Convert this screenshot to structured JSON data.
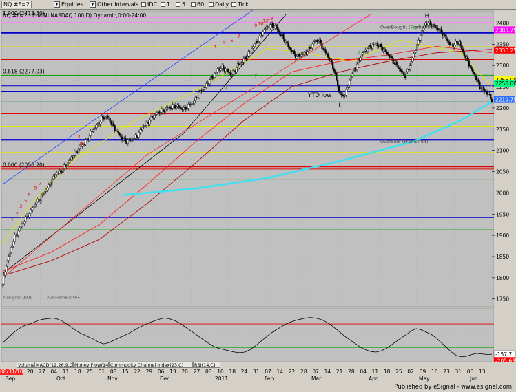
{
  "toolbar": {
    "symbol": "NQ #F=2",
    "equities": "Equities",
    "other_intervals": "Other Intervals",
    "buttons": [
      "IDC",
      "1",
      "5",
      "60",
      "Daily",
      "Tick"
    ]
  },
  "chart_data": [
    {
      "type": "candlestick",
      "title": "NQ #F=2 - E-MINI NASDAQ 100,D) Dynamic,0:00-24:00",
      "ylim": [
        1735,
        2425
      ],
      "price_labels": [
        "2400",
        "2350",
        "2300",
        "2250",
        "2200",
        "2150",
        "2100",
        "2050",
        "2000",
        "1950",
        "1900",
        "1850",
        "1800",
        "1750"
      ],
      "price_values": [
        2400,
        2350,
        2300,
        2250,
        2200,
        2150,
        2100,
        2050,
        2000,
        1950,
        1900,
        1850,
        1800,
        1750
      ],
      "value_tags": [
        {
          "text": "2383.75",
          "value": 2383.75,
          "color": "#ff00ff"
        },
        {
          "text": "2336.25",
          "value": 2336.25,
          "color": "#ff0000"
        },
        {
          "text": "2266.00",
          "value": 2266,
          "color": "#ffff00"
        },
        {
          "text": "2258.00",
          "value": 2258,
          "color": "#00ff80"
        },
        {
          "text": "2219.75",
          "value": 2219.75,
          "color": "#3070ff"
        }
      ],
      "fib_labels": [
        {
          "text": "1.000 (2413.50)",
          "value": 2413.5
        },
        {
          "text": "0.618 (2277.03)",
          "value": 2277.03
        },
        {
          "text": "0.000 (2056.20)",
          "value": 2056.2
        }
      ],
      "annotations": [
        "YTD low",
        "L",
        "H",
        "OverBought (Frame: 84)",
        "OverSold (Frame: 84)",
        "©eSignal, 2020",
        "AutoFrame is OFF"
      ],
      "horizontal_levels": [
        {
          "value": 2413,
          "color": "#ff80ff",
          "style": "solid"
        },
        {
          "value": 2402,
          "color": "#ff80ff",
          "style": "solid"
        },
        {
          "value": 2377,
          "color": "#0000cc",
          "style": "thick"
        },
        {
          "value": 2344,
          "color": "#e6e600",
          "style": "solid"
        },
        {
          "value": 2314,
          "color": "#e00000",
          "style": "solid"
        },
        {
          "value": 2277,
          "color": "#00a000",
          "style": "solid"
        },
        {
          "value": 2252,
          "color": "#0000cc",
          "style": "solid"
        },
        {
          "value": 2238,
          "color": "#0000cc",
          "style": "solid"
        },
        {
          "value": 2214,
          "color": "#008080",
          "style": "solid"
        },
        {
          "value": 2186,
          "color": "#e00000",
          "style": "solid"
        },
        {
          "value": 2157,
          "color": "#e6e600",
          "style": "solid"
        },
        {
          "value": 2125,
          "color": "#0000cc",
          "style": "thick"
        },
        {
          "value": 2095,
          "color": "#e6e600",
          "style": "solid"
        },
        {
          "value": 2062,
          "color": "#e00000",
          "style": "thick"
        },
        {
          "value": 2056,
          "color": "#e00000",
          "style": "solid"
        },
        {
          "value": 2032,
          "color": "#00a000",
          "style": "solid"
        },
        {
          "value": 1942,
          "color": "#0000cc",
          "style": "solid"
        },
        {
          "value": 1913,
          "color": "#00a000",
          "style": "solid"
        }
      ],
      "close_path": [
        [
          0,
          1785
        ],
        [
          3,
          1830
        ],
        [
          7,
          1870
        ],
        [
          10,
          1895
        ],
        [
          14,
          1915
        ],
        [
          17,
          1930
        ],
        [
          20,
          1945
        ],
        [
          24,
          1960
        ],
        [
          27,
          1975
        ],
        [
          31,
          1985
        ],
        [
          34,
          2000
        ],
        [
          38,
          2015
        ],
        [
          41,
          2030
        ],
        [
          44,
          2045
        ],
        [
          48,
          2050
        ],
        [
          51,
          2060
        ],
        [
          55,
          2075
        ],
        [
          58,
          2085
        ],
        [
          62,
          2100
        ],
        [
          65,
          2110
        ],
        [
          69,
          2120
        ],
        [
          72,
          2135
        ],
        [
          75,
          2150
        ],
        [
          79,
          2160
        ],
        [
          82,
          2175
        ],
        [
          86,
          2180
        ],
        [
          89,
          2170
        ],
        [
          92,
          2155
        ],
        [
          96,
          2140
        ],
        [
          99,
          2128
        ],
        [
          103,
          2120
        ],
        [
          106,
          2125
        ],
        [
          110,
          2130
        ],
        [
          113,
          2140
        ],
        [
          116,
          2155
        ],
        [
          120,
          2165
        ],
        [
          123,
          2175
        ],
        [
          127,
          2185
        ],
        [
          130,
          2190
        ],
        [
          134,
          2195
        ],
        [
          137,
          2200
        ],
        [
          140,
          2203
        ],
        [
          144,
          2205
        ],
        [
          147,
          2200
        ],
        [
          151,
          2198
        ],
        [
          154,
          2205
        ],
        [
          158,
          2212
        ],
        [
          161,
          2225
        ],
        [
          164,
          2238
        ],
        [
          168,
          2250
        ],
        [
          171,
          2262
        ],
        [
          175,
          2275
        ],
        [
          178,
          2290
        ],
        [
          182,
          2295
        ],
        [
          185,
          2290
        ],
        [
          189,
          2280
        ],
        [
          192,
          2285
        ],
        [
          195,
          2300
        ],
        [
          199,
          2310
        ],
        [
          202,
          2320
        ],
        [
          206,
          2335
        ],
        [
          209,
          2350
        ],
        [
          213,
          2365
        ],
        [
          216,
          2380
        ],
        [
          220,
          2392
        ],
        [
          223,
          2395
        ],
        [
          227,
          2390
        ],
        [
          230,
          2375
        ],
        [
          234,
          2360
        ],
        [
          237,
          2345
        ],
        [
          241,
          2330
        ],
        [
          244,
          2320
        ],
        [
          248,
          2325
        ],
        [
          251,
          2330
        ],
        [
          255,
          2340
        ],
        [
          258,
          2355
        ],
        [
          262,
          2360
        ],
        [
          265,
          2345
        ],
        [
          268,
          2330
        ],
        [
          272,
          2310
        ],
        [
          275,
          2290
        ],
        [
          279,
          2240
        ],
        [
          282,
          2225
        ],
        [
          286,
          2245
        ],
        [
          289,
          2275
        ],
        [
          293,
          2295
        ],
        [
          296,
          2315
        ],
        [
          299,
          2330
        ],
        [
          303,
          2340
        ],
        [
          306,
          2345
        ],
        [
          310,
          2350
        ],
        [
          313,
          2345
        ],
        [
          317,
          2335
        ],
        [
          320,
          2325
        ],
        [
          324,
          2310
        ],
        [
          327,
          2300
        ],
        [
          331,
          2285
        ],
        [
          334,
          2275
        ],
        [
          338,
          2300
        ],
        [
          341,
          2325
        ],
        [
          345,
          2355
        ],
        [
          348,
          2380
        ],
        [
          351,
          2400
        ],
        [
          355,
          2398
        ],
        [
          358,
          2392
        ],
        [
          362,
          2385
        ],
        [
          365,
          2375
        ],
        [
          369,
          2360
        ],
        [
          372,
          2345
        ],
        [
          375,
          2350
        ],
        [
          379,
          2355
        ],
        [
          382,
          2330
        ],
        [
          386,
          2310
        ],
        [
          389,
          2290
        ],
        [
          393,
          2270
        ],
        [
          396,
          2250
        ],
        [
          400,
          2240
        ],
        [
          403,
          2232
        ],
        [
          406,
          2219
        ]
      ],
      "sma_a": [
        [
          0,
          1815
        ],
        [
          40,
          1860
        ],
        [
          80,
          1925
        ],
        [
          120,
          2020
        ],
        [
          160,
          2120
        ],
        [
          200,
          2210
        ],
        [
          240,
          2285
        ],
        [
          280,
          2310
        ],
        [
          320,
          2325
        ],
        [
          360,
          2345
        ],
        [
          406,
          2330
        ]
      ],
      "sma_b": [
        [
          0,
          1805
        ],
        [
          40,
          1840
        ],
        [
          80,
          1890
        ],
        [
          120,
          1975
        ],
        [
          160,
          2070
        ],
        [
          200,
          2170
        ],
        [
          240,
          2250
        ],
        [
          280,
          2285
        ],
        [
          320,
          2310
        ],
        [
          360,
          2330
        ],
        [
          406,
          2338
        ]
      ],
      "sma_c": [
        [
          100,
          1995
        ],
        [
          160,
          2010
        ],
        [
          220,
          2035
        ],
        [
          280,
          2075
        ],
        [
          340,
          2120
        ],
        [
          380,
          2170
        ],
        [
          406,
          2215
        ]
      ],
      "channel_upper": [
        [
          0,
          2020
        ],
        [
          85,
          2190
        ],
        [
          210,
          2435
        ]
      ],
      "channel_lower": [
        [
          0,
          1810
        ],
        [
          150,
          2140
        ],
        [
          235,
          2420
        ]
      ],
      "channel_red": [
        [
          0,
          1800
        ],
        [
          120,
          2090
        ],
        [
          305,
          2420
        ]
      ],
      "yellow_curve": [
        [
          0,
          1880
        ],
        [
          25,
          1980
        ],
        [
          60,
          2080
        ],
        [
          110,
          2170
        ],
        [
          160,
          2240
        ],
        [
          220,
          2340
        ],
        [
          250,
          2330
        ],
        [
          290,
          2310
        ],
        [
          330,
          2360
        ],
        [
          380,
          2330
        ],
        [
          406,
          2250
        ]
      ],
      "tdseq": [
        {
          "i": 8,
          "v": 1930,
          "t": "1"
        },
        {
          "i": 12,
          "v": 1945,
          "t": "2"
        },
        {
          "i": 15,
          "v": 1962,
          "t": "3"
        },
        {
          "i": 19,
          "v": 1975,
          "t": "5"
        },
        {
          "i": 22,
          "v": 1990,
          "t": "6"
        },
        {
          "i": 27,
          "v": 2005,
          "t": "8"
        },
        {
          "i": 31,
          "v": 2015,
          "t": "7"
        },
        {
          "i": 62,
          "v": 2125,
          "t": "13"
        },
        {
          "i": 65,
          "v": 2108,
          "t": "8"
        },
        {
          "i": 176,
          "v": 2338,
          "t": "4"
        },
        {
          "i": 184,
          "v": 2348,
          "t": "5"
        },
        {
          "i": 190,
          "v": 2352,
          "t": "6"
        },
        {
          "i": 196,
          "v": 2362,
          "t": "7"
        },
        {
          "i": 210,
          "v": 2388,
          "t": "9"
        },
        {
          "i": 214,
          "v": 2392,
          "t": "10"
        },
        {
          "i": 218,
          "v": 2398,
          "t": "12"
        },
        {
          "i": 222,
          "v": 2404,
          "t": "13"
        }
      ],
      "tdseq_green": [
        {
          "i": 185,
          "v": 2258,
          "t": "5"
        },
        {
          "i": 210,
          "v": 2285,
          "t": "7"
        },
        {
          "i": 352,
          "v": 2405,
          "t": "9"
        },
        {
          "i": 342,
          "v": 2398,
          "t": "6"
        },
        {
          "i": 346,
          "v": 2402,
          "t": "8"
        },
        {
          "i": 296,
          "v": 2340,
          "t": "2"
        },
        {
          "i": 300,
          "v": 2343,
          "t": "3"
        }
      ]
    },
    {
      "type": "line",
      "title": "RSI(14,C)",
      "value_tags": [
        {
          "text": "-157.7",
          "color": "#000000"
        },
        {
          "text": "-205.63",
          "color": "#ff0000"
        }
      ],
      "series": [
        {
          "values": [
            -60,
            -20,
            20,
            55,
            80,
            95,
            110,
            130,
            140,
            145,
            150,
            140,
            120,
            90,
            60,
            30,
            10,
            -10,
            -30,
            -55,
            -70,
            -60,
            -40,
            -20,
            0,
            20,
            45,
            70,
            90,
            110,
            125,
            140,
            150,
            145,
            130,
            110,
            80,
            50,
            20,
            -10,
            -40,
            -70,
            -95,
            -110,
            -120,
            -130,
            -140,
            -145,
            -140,
            -120,
            -90,
            -55,
            -20,
            15,
            45,
            70,
            95,
            115,
            130,
            140,
            150,
            155,
            150,
            140,
            120,
            95,
            60,
            25,
            -10,
            -40,
            -70,
            -100,
            -120,
            -135,
            -140,
            -130,
            -110,
            -80,
            -50,
            -20,
            10,
            40,
            60,
            50,
            30,
            10,
            -20,
            -60,
            -100,
            -140,
            -170,
            -180,
            -175,
            -160,
            -150,
            -155,
            -160,
            -158
          ]
        }
      ]
    }
  ],
  "tabs": [
    "Volume",
    "MACD(12,26,9,C)",
    "Money Flow(14)",
    "Commodity Channel Index(23,C)",
    "RSI(14,C)"
  ],
  "x_axis": {
    "start_label": "08/31/10",
    "months": [
      "Sep",
      "Oct",
      "Nov",
      "Dec",
      "2011",
      "Feb",
      "Mar",
      "Apr",
      "May",
      "Jun"
    ],
    "days": [
      "20",
      "27",
      "04",
      "11",
      "18",
      "25",
      "01",
      "08",
      "15",
      "22",
      "29",
      "06",
      "13",
      "20",
      "27",
      "03",
      "10",
      "18",
      "24",
      "31",
      "07",
      "14",
      "22",
      "28",
      "07",
      "14",
      "21",
      "28",
      "04",
      "11",
      "18",
      "25",
      "02",
      "09",
      "16",
      "23",
      "31",
      "06",
      "13"
    ]
  },
  "footer": "Published by eSignal - www.esignal.com"
}
